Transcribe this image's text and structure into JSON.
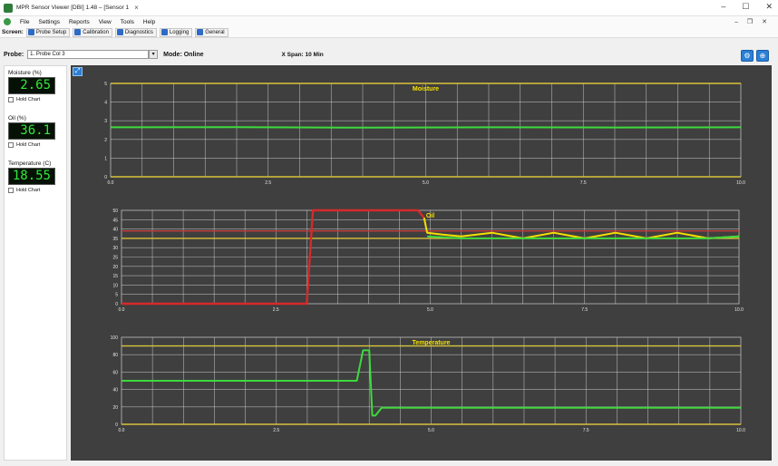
{
  "window": {
    "title": "MPR Sensor Viewer [DBI] 1.48 – [Sensor 1",
    "tab_close": "×",
    "buttons": [
      "–",
      "☐",
      "✕"
    ]
  },
  "menu": {
    "items": [
      "File",
      "Settings",
      "Reports",
      "View",
      "Tools",
      "Help"
    ],
    "mdi_buttons": "– ❐ ✕"
  },
  "toolbar": {
    "label": "Screen:",
    "buttons": [
      "Probe Setup",
      "Calibration",
      "Diagnostics",
      "Logging",
      "General"
    ]
  },
  "probe": {
    "label": "Probe:",
    "selected": "1. Probe Col 3",
    "mode": "Mode: Online",
    "xspan": "X Span: 10 Min"
  },
  "meters": [
    {
      "label": "Moisture (%)",
      "value": "2.65",
      "hold": "Hold Chart"
    },
    {
      "label": "Oil (%)",
      "value": "36.1",
      "hold": "Hold Chart"
    },
    {
      "label": "Temperature (C)",
      "value": "18.55",
      "hold": "Hold Chart"
    }
  ],
  "colors": {
    "plot_bg": "#3f3f3f",
    "grid": "#d8d8d8",
    "limit_yellow": "#d8c43a",
    "limit_red": "#c83c3c",
    "series_green": "#3ed93e",
    "series_red": "#d52a2a",
    "series_yellow": "#f5e000",
    "accent_blue": "#2b7fd6"
  },
  "chart_data": [
    {
      "type": "line",
      "title": "Moisture",
      "xlim": [
        0,
        10
      ],
      "xticks": [
        "0.0",
        "2.5",
        "5.0",
        "7.5",
        "10.0"
      ],
      "ylim": [
        0,
        5
      ],
      "yticks": [
        "0",
        "1",
        "2",
        "3",
        "4",
        "5"
      ],
      "grid": true,
      "limits": [
        {
          "y": 5.0,
          "color": "yellow"
        },
        {
          "y": 0.0,
          "color": "yellow"
        }
      ],
      "series": [
        {
          "color": "green",
          "x": [
            0,
            2,
            4,
            6,
            8,
            10
          ],
          "y": [
            2.65,
            2.66,
            2.63,
            2.65,
            2.64,
            2.65
          ]
        }
      ]
    },
    {
      "type": "line",
      "title": "Oil",
      "xlim": [
        0,
        10
      ],
      "xticks": [
        "0.0",
        "2.5",
        "5.0",
        "7.5",
        "10.0"
      ],
      "ylim": [
        0,
        50
      ],
      "yticks": [
        "0",
        "5",
        "10",
        "15",
        "20",
        "25",
        "30",
        "35",
        "40",
        "45",
        "50"
      ],
      "grid": true,
      "limits": [
        {
          "y": 39,
          "color": "red"
        },
        {
          "y": 35,
          "color": "yellow"
        }
      ],
      "series": [
        {
          "color": "red",
          "x": [
            0,
            3.0,
            3.1,
            4.8,
            4.9
          ],
          "y": [
            0,
            0,
            50,
            50,
            46
          ]
        },
        {
          "color": "yellow",
          "x": [
            4.9,
            4.95,
            5.2,
            5.5,
            6.0,
            6.5,
            7.0,
            7.5,
            8.0,
            8.5,
            9.0,
            9.5,
            10
          ],
          "y": [
            46,
            38,
            37,
            36,
            38,
            35,
            38,
            35,
            38,
            35,
            38,
            35,
            36
          ]
        },
        {
          "color": "green",
          "x": [
            4.95,
            5.5,
            6.5,
            7.5,
            8.5,
            9.5,
            10
          ],
          "y": [
            36,
            35,
            35,
            35,
            35,
            35,
            36
          ]
        }
      ]
    },
    {
      "type": "line",
      "title": "Temperature",
      "xlim": [
        0,
        10
      ],
      "xticks": [
        "0.0",
        "2.5",
        "5.0",
        "7.5",
        "10.0"
      ],
      "ylim": [
        0,
        100
      ],
      "yticks": [
        "0",
        "20",
        "40",
        "60",
        "80",
        "100"
      ],
      "grid": true,
      "limits": [
        {
          "y": 90,
          "color": "yellow"
        },
        {
          "y": 0,
          "color": "yellow"
        }
      ],
      "series": [
        {
          "color": "green",
          "x": [
            0,
            3.8,
            3.9,
            4.0,
            4.05,
            4.1,
            4.2,
            10
          ],
          "y": [
            50,
            50,
            85,
            85,
            10,
            10,
            19,
            19
          ]
        }
      ]
    }
  ],
  "status": {
    "text": ""
  }
}
